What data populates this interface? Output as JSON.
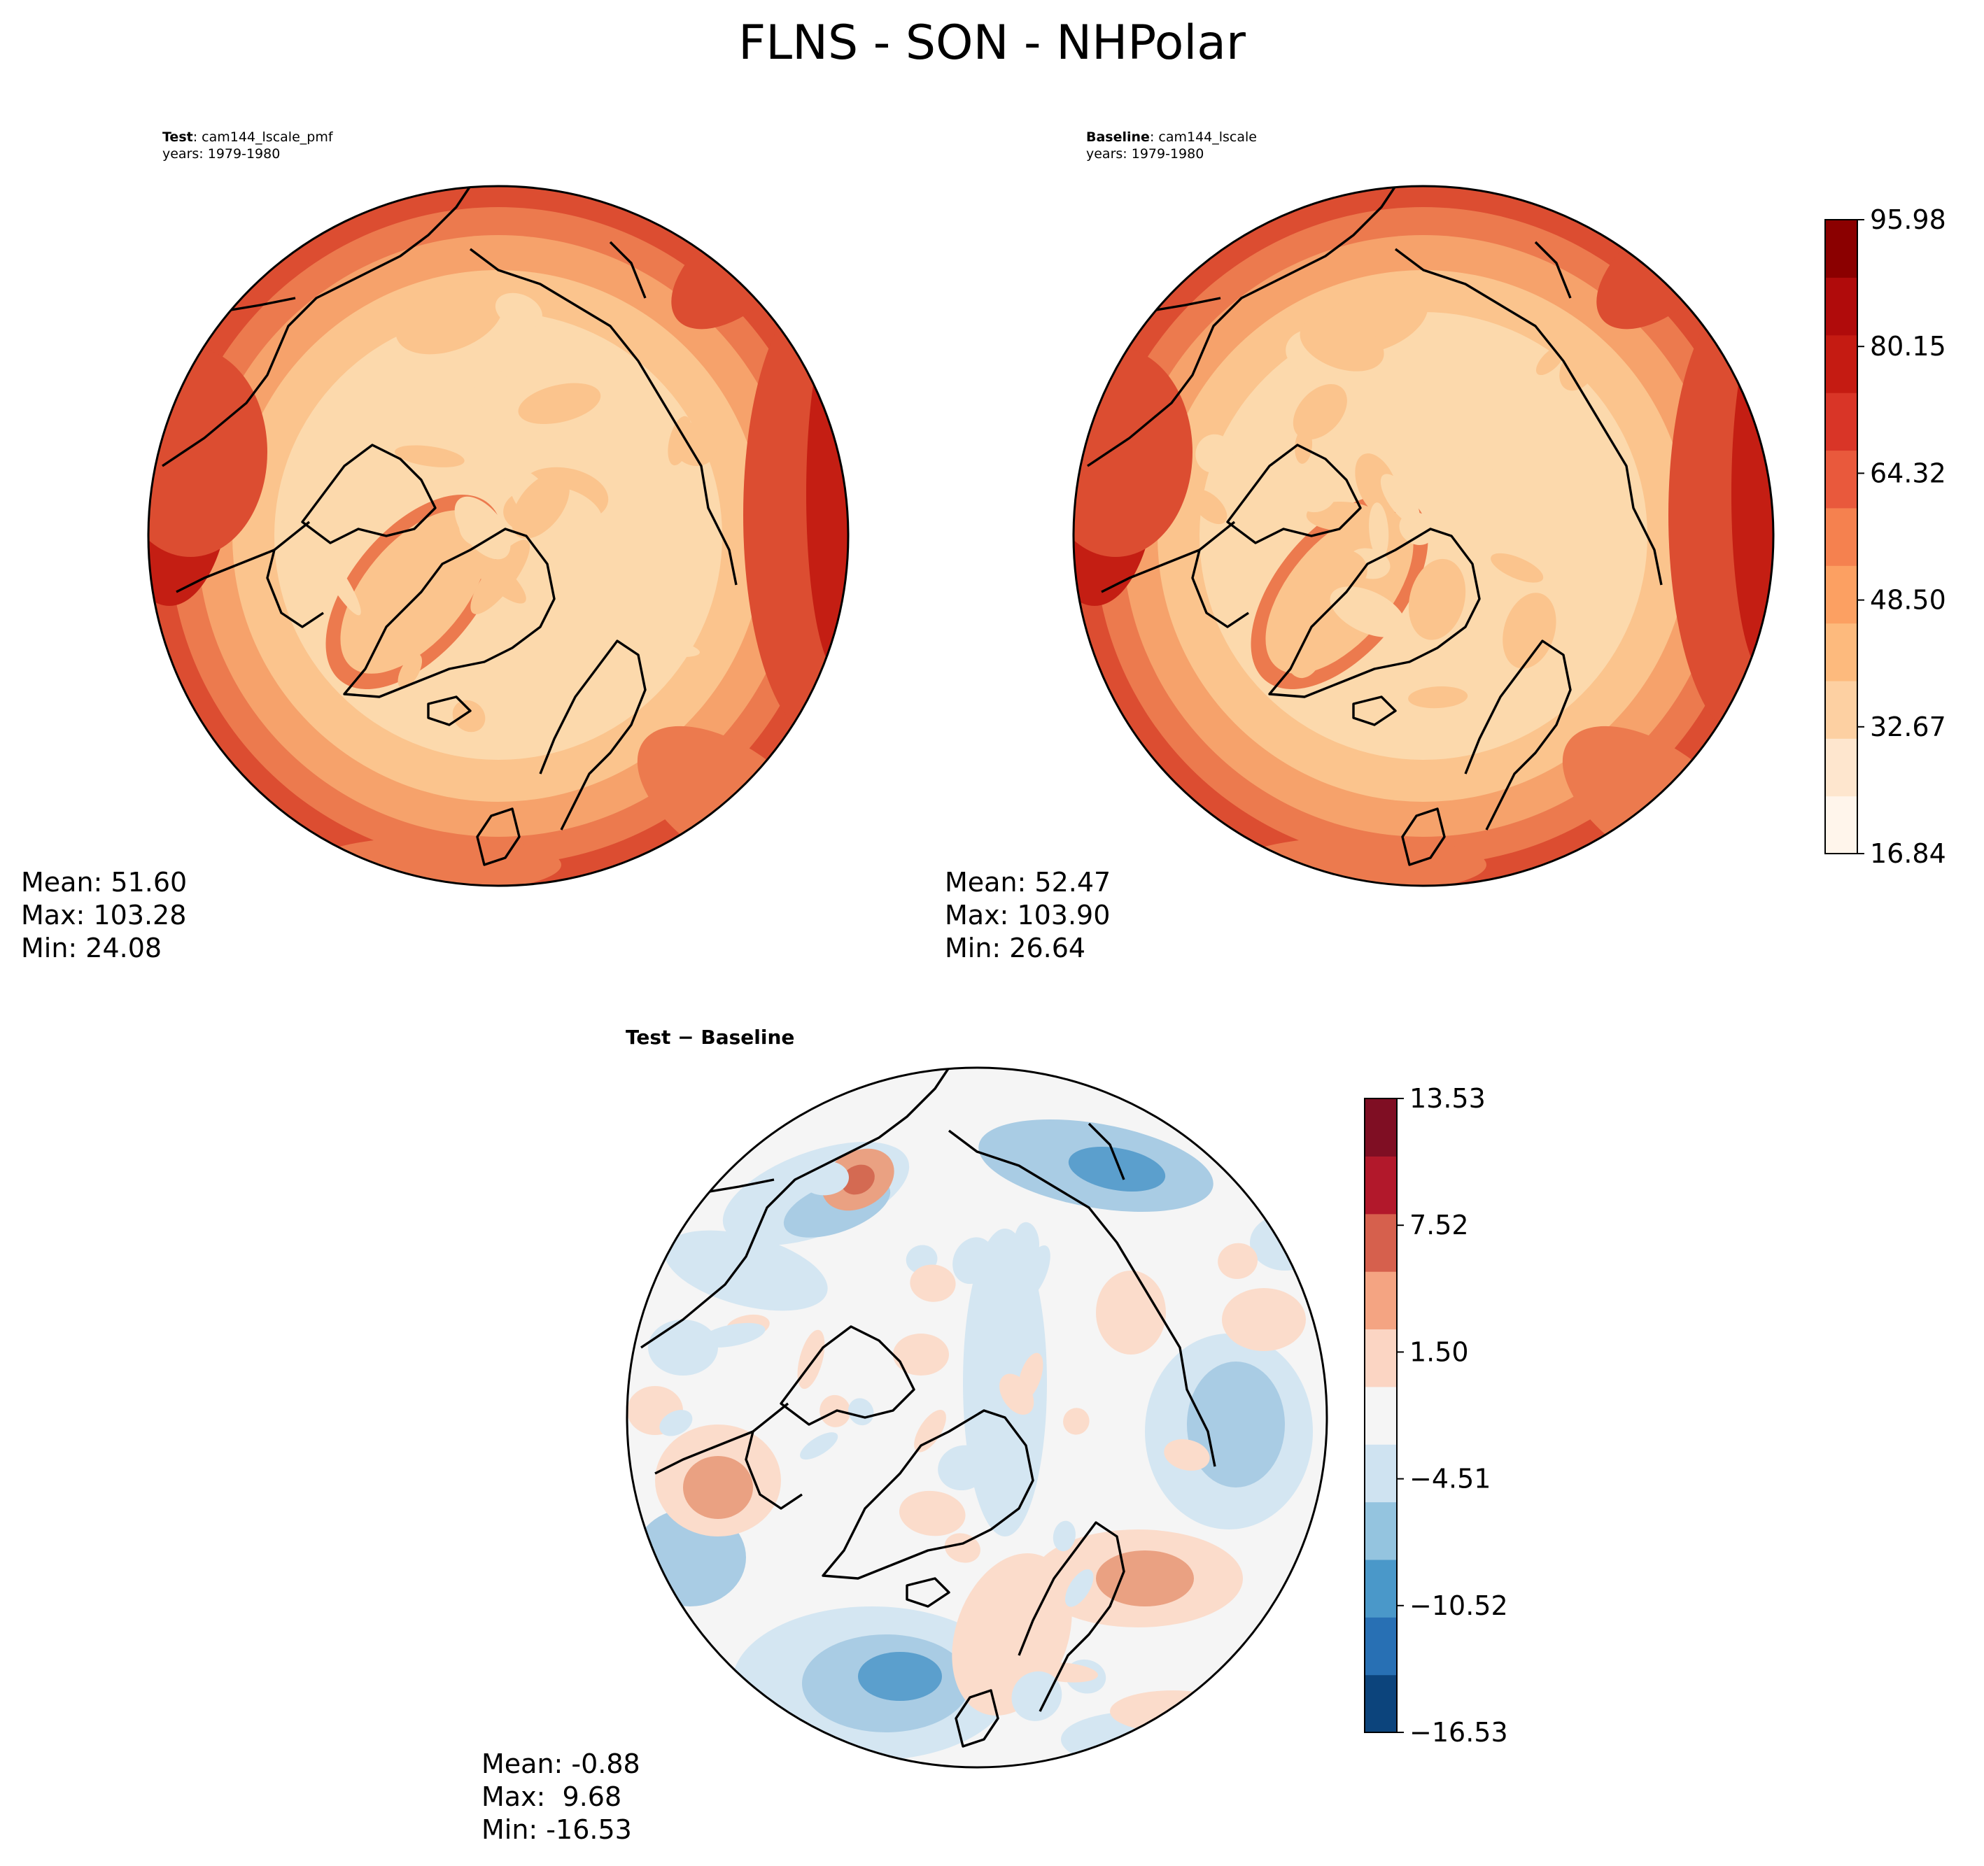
{
  "figure": {
    "title": "FLNS - SON - NHPolar"
  },
  "panels": {
    "test": {
      "label_bold": "Test",
      "label_rest": ": cam144_lscale_pmf",
      "years": "years: 1979-1980",
      "mean": "Mean: 51.60",
      "max": "Max: 103.28",
      "min": "Min: 24.08"
    },
    "baseline": {
      "label_bold": "Baseline",
      "label_rest": ": cam144_lscale",
      "years": "years: 1979-1980",
      "mean": "Mean: 52.47",
      "max": "Max: 103.90",
      "min": "Min: 26.64"
    },
    "diff": {
      "label": "Test − Baseline",
      "mean": "Mean: -0.88",
      "max": "Max:  9.68",
      "min": "Min: -16.53"
    }
  },
  "chart_data": [
    {
      "type": "heatmap",
      "projection": "north-polar-stereographic",
      "name": "Test",
      "colorscale": "OrRd-like",
      "colorbar": {
        "ticks": [
          "16.84",
          "32.67",
          "48.50",
          "64.32",
          "80.15",
          "95.98"
        ],
        "range": [
          16.84,
          103.9
        ]
      }
    },
    {
      "type": "heatmap",
      "projection": "north-polar-stereographic",
      "name": "Baseline",
      "colorscale": "OrRd-like",
      "colorbar": {
        "ticks": [
          "16.84",
          "32.67",
          "48.50",
          "64.32",
          "80.15",
          "95.98"
        ],
        "range": [
          16.84,
          103.9
        ]
      }
    },
    {
      "type": "heatmap",
      "projection": "north-polar-stereographic",
      "name": "Test − Baseline",
      "colorscale": "RdBu_r",
      "colorbar": {
        "ticks": [
          "-16.53",
          "-10.52",
          "-4.51",
          "1.50",
          "7.52",
          "13.53"
        ],
        "range": [
          -16.53,
          16.53
        ]
      }
    }
  ],
  "colors": {
    "seq": [
      "#fff5eb",
      "#fee6ce",
      "#fdd0a2",
      "#fdba7d",
      "#fca062",
      "#f5814f",
      "#e9593c",
      "#d93527",
      "#c51b12",
      "#b00b0b",
      "#8b0000"
    ],
    "div": [
      "#0c447c",
      "#2870b4",
      "#4a98c9",
      "#94c4df",
      "#cfe3f1",
      "#f5f5f5",
      "#fbd5c3",
      "#f4a482",
      "#d6604d",
      "#b2182b",
      "#7f0e23"
    ],
    "test_fill": [
      "#fcd9ac",
      "#fbc48d",
      "#f6a26b",
      "#ec7a4e",
      "#dc4d31",
      "#c41e13"
    ],
    "diff_fill": [
      "#f5f5f5",
      "#d4e6f2",
      "#a9cce4",
      "#5b9fcd",
      "#fbdccb",
      "#eaa182",
      "#d46a52"
    ]
  }
}
